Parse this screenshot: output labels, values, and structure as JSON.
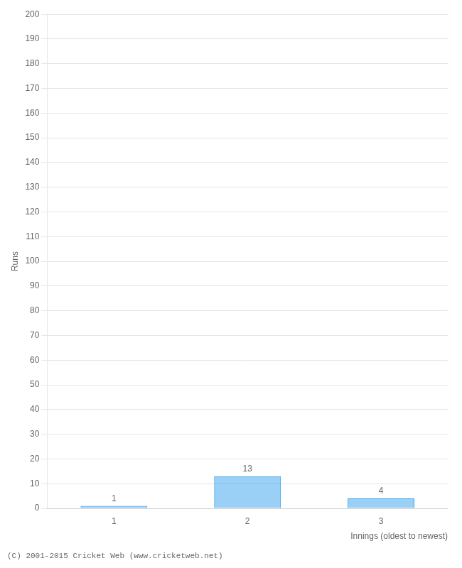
{
  "chart_data": {
    "type": "bar",
    "categories": [
      "1",
      "2",
      "3"
    ],
    "values": [
      1,
      13,
      4
    ],
    "data_labels": true,
    "xlabel": "Innings (oldest to newest)",
    "ylabel": "Runs",
    "ylim": [
      0,
      200
    ],
    "yticks": [
      0,
      10,
      20,
      30,
      40,
      50,
      60,
      70,
      80,
      90,
      100,
      110,
      120,
      130,
      140,
      150,
      160,
      170,
      180,
      190,
      200
    ],
    "grid": true,
    "annotations": [
      "(C) 2001-2015 Cricket Web (www.cricketweb.net)"
    ]
  }
}
